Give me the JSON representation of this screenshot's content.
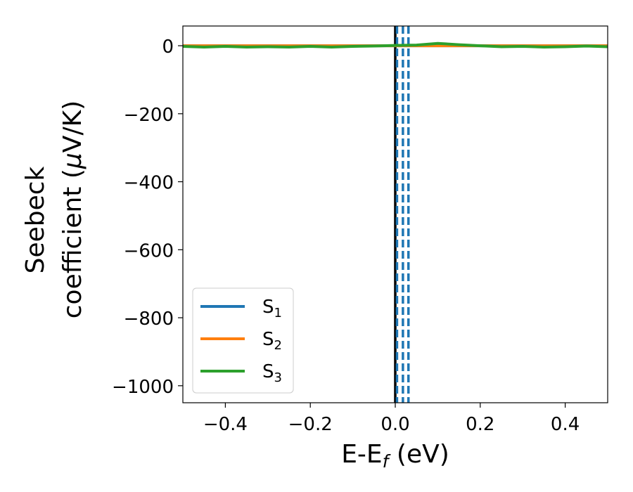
{
  "chart_data": {
    "type": "line",
    "xlabel": {
      "main": "E-E",
      "sub": "f",
      "unit": " (eV)"
    },
    "ylabel": {
      "line1": "Seebeck",
      "line2": "coefficient  (",
      "mu": "μ",
      "unit": "V/K)"
    },
    "xlim": [
      -0.5,
      0.5
    ],
    "ylim": [
      -1050,
      58
    ],
    "xticks": [
      -0.4,
      -0.2,
      0.0,
      0.2,
      0.4
    ],
    "xtick_labels": [
      "−0.4",
      "−0.2",
      "0.0",
      "0.2",
      "0.4"
    ],
    "yticks": [
      0,
      -200,
      -400,
      -600,
      -800,
      -1000
    ],
    "ytick_labels": [
      "0",
      "−200",
      "−400",
      "−600",
      "−800",
      "−1000"
    ],
    "grid": false,
    "legend_position": "lower-left",
    "series": [
      {
        "name": "S",
        "subscript": "1",
        "color": "#1f77b4",
        "x": [
          -0.5,
          0.5
        ],
        "y": [
          0,
          0
        ]
      },
      {
        "name": "S",
        "subscript": "2",
        "color": "#ff7f0e",
        "x": [
          -0.5,
          0.5
        ],
        "y": [
          0,
          0
        ]
      },
      {
        "name": "S",
        "subscript": "3",
        "color": "#2ca02c",
        "x": [
          -0.5,
          -0.45,
          -0.4,
          -0.35,
          -0.3,
          -0.25,
          -0.2,
          -0.15,
          -0.1,
          -0.05,
          0.0,
          0.05,
          0.1,
          0.15,
          0.2,
          0.25,
          0.3,
          0.35,
          0.4,
          0.45,
          0.5
        ],
        "y": [
          -2,
          -4,
          -2,
          -4,
          -3,
          -4,
          -2,
          -4,
          -2,
          -1,
          1,
          2,
          7,
          3,
          0,
          -3,
          -2,
          -4,
          -3,
          -1,
          -3
        ]
      }
    ],
    "vertical_lines": [
      {
        "x": 0.0,
        "style": "solid",
        "color": "#000000"
      },
      {
        "x": 0.004,
        "style": "dashed",
        "color": "#1f77b4"
      },
      {
        "x": 0.018,
        "style": "dashed",
        "color": "#1f77b4"
      },
      {
        "x": 0.031,
        "style": "dashed",
        "color": "#1f77b4"
      }
    ]
  }
}
